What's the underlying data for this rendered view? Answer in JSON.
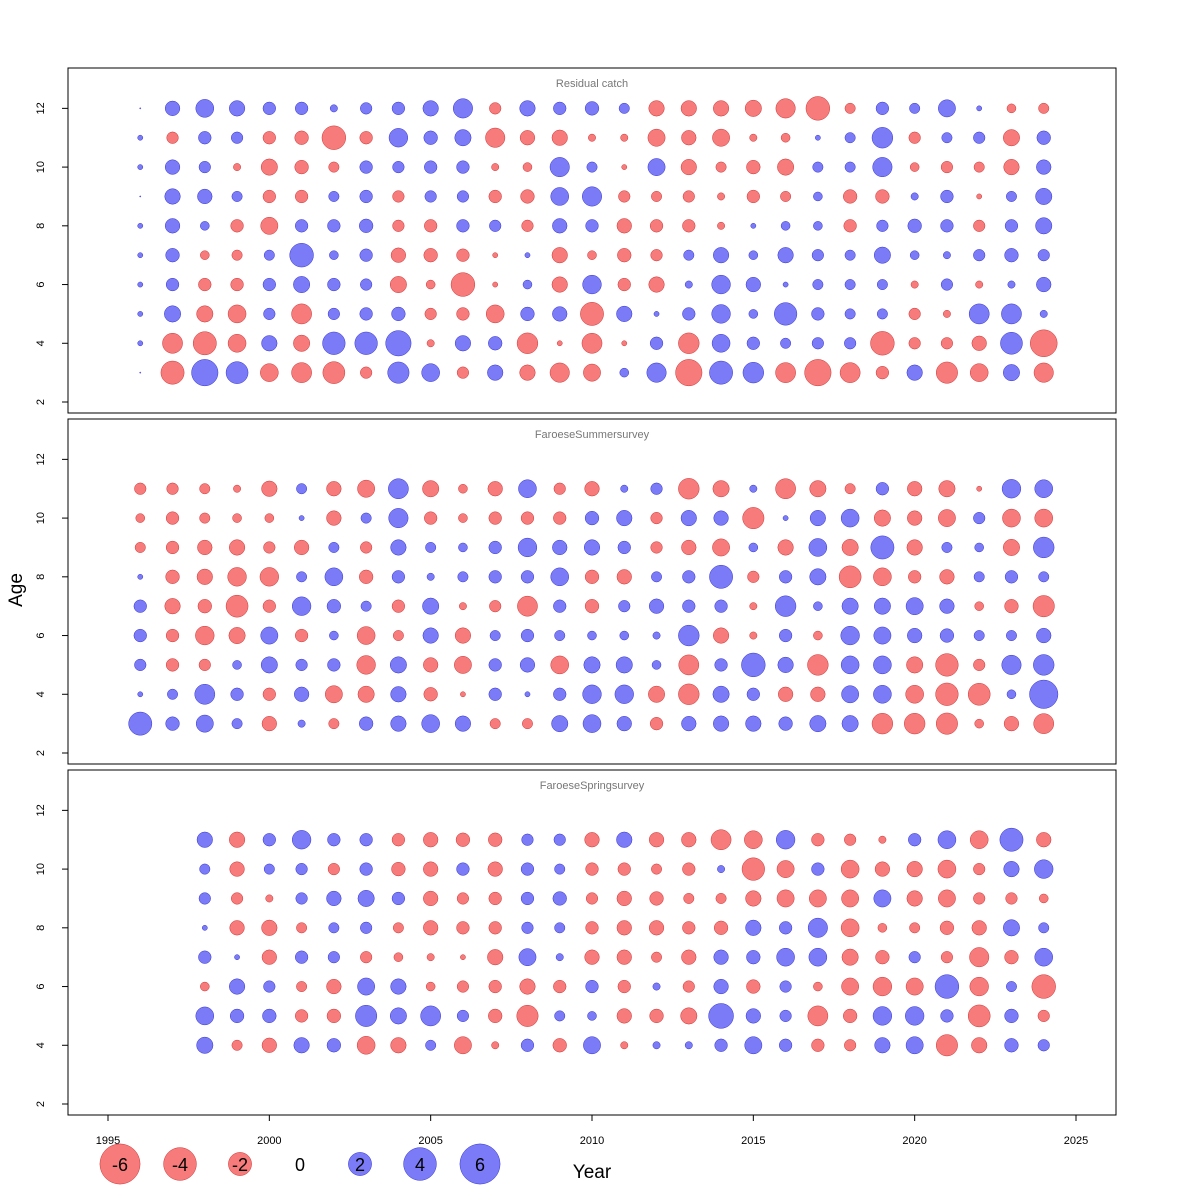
{
  "chart_data": {
    "type": "scatter",
    "subtype": "bubble-residuals",
    "xlabel": "Year",
    "ylabel": "Age",
    "xlim": [
      1995,
      2025
    ],
    "ylim": [
      2,
      13
    ],
    "x_ticks": [
      "1995",
      "2000",
      "2005",
      "2010",
      "2015",
      "2020",
      "2025"
    ],
    "y_ticks": [
      "2",
      "4",
      "6",
      "8",
      "10",
      "12"
    ],
    "colors": {
      "positive": "#7b7bf7",
      "negative": "#f77b7b",
      "outline_positive": "#3333cc",
      "outline_negative": "#cc3333"
    },
    "legend": {
      "position": "bottom-left",
      "values": [
        -6,
        -4,
        -2,
        0,
        2,
        4,
        6
      ],
      "labels": [
        "-6",
        "-4",
        "-2",
        "0",
        "2",
        "4",
        "6"
      ]
    },
    "panels": [
      {
        "title": "Residual catch",
        "first_year": 1996,
        "ages": [
          3,
          4,
          5,
          6,
          7,
          8,
          9,
          10,
          11,
          12
        ],
        "residuals": [
          [
            0.0,
            0.1,
            0.1,
            0.1,
            0.1,
            0.1,
            0.0,
            0.1,
            0.1,
            0.0
          ],
          [
            -2.0,
            -1.5,
            1.0,
            0.6,
            0.7,
            0.8,
            0.9,
            0.8,
            -0.5,
            0.8
          ],
          [
            2.6,
            -2.0,
            -1.0,
            -0.6,
            -0.3,
            0.3,
            0.8,
            0.5,
            0.6,
            1.2
          ],
          [
            1.8,
            -1.2,
            -1.2,
            -0.6,
            -0.4,
            -0.6,
            0.4,
            -0.2,
            0.5,
            0.9
          ],
          [
            -1.2,
            0.9,
            0.5,
            0.6,
            0.4,
            -1.1,
            -0.6,
            -1.0,
            -0.6,
            0.6
          ],
          [
            -1.5,
            -1.0,
            -1.5,
            1.0,
            2.1,
            0.6,
            -0.6,
            -0.7,
            -0.7,
            0.6
          ],
          [
            -1.8,
            1.9,
            0.5,
            0.6,
            0.3,
            0.6,
            0.4,
            -0.4,
            -2.1,
            0.2
          ],
          [
            -0.5,
            1.9,
            0.6,
            0.5,
            0.6,
            0.7,
            0.6,
            0.6,
            -0.6,
            0.5
          ],
          [
            1.7,
            2.4,
            0.7,
            -1.0,
            -0.8,
            -0.5,
            -0.5,
            0.5,
            1.3,
            0.6
          ],
          [
            1.2,
            -0.2,
            -0.5,
            -0.3,
            -0.7,
            -0.6,
            0.5,
            0.6,
            0.7,
            0.9
          ],
          [
            -0.5,
            0.9,
            -0.6,
            -2.1,
            -0.6,
            0.6,
            0.5,
            0.6,
            1.0,
            1.4
          ],
          [
            0.9,
            0.7,
            -1.2,
            -0.1,
            -0.1,
            0.5,
            -0.6,
            -0.2,
            -1.4,
            -0.5
          ],
          [
            -0.9,
            -1.6,
            0.7,
            0.3,
            0.1,
            -0.5,
            -0.7,
            -0.3,
            -0.8,
            0.9
          ],
          [
            -1.4,
            -0.1,
            0.8,
            -0.9,
            -0.9,
            0.8,
            1.2,
            1.4,
            -0.9,
            0.6
          ],
          [
            -1.1,
            -1.5,
            -2.0,
            1.3,
            -0.3,
            0.6,
            1.4,
            0.4,
            -0.2,
            0.7
          ],
          [
            0.3,
            -0.1,
            0.9,
            -0.6,
            -0.7,
            -0.8,
            -0.5,
            -0.1,
            -0.2,
            0.4
          ],
          [
            1.4,
            0.6,
            0.1,
            -0.9,
            -0.5,
            -0.6,
            -0.4,
            1.1,
            -1.1,
            -0.9
          ],
          [
            -2.6,
            -1.6,
            0.6,
            0.2,
            0.4,
            -0.6,
            -0.5,
            -0.9,
            -0.8,
            -0.9
          ],
          [
            2.0,
            1.2,
            1.3,
            1.3,
            0.9,
            -0.2,
            -0.2,
            -0.4,
            -1.1,
            -0.9
          ],
          [
            1.6,
            0.6,
            0.3,
            0.8,
            0.3,
            0.1,
            -0.6,
            -0.7,
            -0.2,
            -1.0
          ],
          [
            -1.5,
            0.4,
            1.9,
            0.1,
            0.9,
            0.3,
            -0.4,
            -1.0,
            -0.3,
            -1.4
          ],
          [
            -2.6,
            0.5,
            0.6,
            0.4,
            0.5,
            0.3,
            0.3,
            0.4,
            0.1,
            -2.1
          ],
          [
            -1.5,
            0.5,
            0.4,
            0.4,
            0.4,
            -0.6,
            -0.7,
            0.4,
            0.4,
            -0.4
          ],
          [
            -0.6,
            -2.1,
            0.4,
            0.4,
            1.0,
            0.5,
            -0.7,
            1.4,
            1.6,
            0.6
          ],
          [
            0.9,
            -0.5,
            -0.5,
            -0.2,
            0.3,
            0.7,
            0.2,
            -0.3,
            -0.5,
            0.4
          ],
          [
            -1.7,
            -0.5,
            -0.2,
            0.5,
            0.2,
            0.6,
            0.6,
            -0.5,
            0.4,
            1.1
          ],
          [
            -1.2,
            -0.8,
            1.5,
            -0.2,
            0.5,
            -0.5,
            -0.1,
            -0.4,
            0.5,
            0.1
          ],
          [
            1.0,
            1.8,
            1.5,
            0.2,
            0.7,
            0.6,
            0.4,
            -0.9,
            -1.0,
            -0.3
          ],
          [
            -1.4,
            -2.7,
            0.2,
            0.8,
            0.5,
            1.0,
            1.0,
            0.8,
            0.7,
            -0.4
          ]
        ]
      },
      {
        "title": "FaroeseSummersurvey",
        "first_year": 1996,
        "ages": [
          3,
          4,
          5,
          6,
          7,
          8,
          9,
          10,
          11
        ],
        "residuals": [
          [
            2.0,
            0.1,
            0.5,
            0.6,
            0.6,
            0.1,
            -0.4,
            -0.3,
            -0.5
          ],
          [
            0.7,
            0.4,
            -0.6,
            -0.6,
            -0.9,
            -0.7,
            -0.6,
            -0.6,
            -0.5
          ],
          [
            1.1,
            1.5,
            -0.5,
            -1.3,
            -0.7,
            -0.9,
            -0.8,
            -0.4,
            -0.4
          ],
          [
            0.4,
            0.6,
            0.3,
            -1.0,
            -1.8,
            -1.3,
            -0.9,
            -0.3,
            -0.2
          ],
          [
            -0.8,
            -0.6,
            1.0,
            1.1,
            -0.6,
            -1.3,
            -0.5,
            -0.3,
            -0.9
          ],
          [
            0.2,
            0.8,
            0.5,
            -0.6,
            1.3,
            0.4,
            -0.8,
            0.1,
            0.4
          ],
          [
            -0.4,
            -1.1,
            0.6,
            0.3,
            0.7,
            1.2,
            0.4,
            -0.8,
            -0.8
          ],
          [
            0.7,
            -1.0,
            -1.3,
            -1.2,
            0.4,
            -0.7,
            -0.5,
            0.4,
            -1.1
          ],
          [
            0.9,
            0.9,
            1.0,
            -0.4,
            -0.6,
            0.6,
            0.9,
            1.4,
            1.5
          ],
          [
            1.2,
            -0.7,
            -0.8,
            0.9,
            1.0,
            0.2,
            0.4,
            -0.6,
            -1.0
          ],
          [
            0.9,
            -0.1,
            -1.1,
            -0.9,
            -0.2,
            0.4,
            0.3,
            -0.3,
            -0.3
          ],
          [
            -0.4,
            0.6,
            0.6,
            0.4,
            -0.5,
            0.6,
            0.6,
            -0.6,
            -0.8
          ],
          [
            -0.4,
            0.1,
            0.8,
            0.6,
            -1.5,
            0.6,
            1.3,
            -0.6,
            1.2
          ],
          [
            1.0,
            0.6,
            -1.2,
            0.4,
            0.6,
            1.2,
            0.8,
            -0.6,
            -0.5
          ],
          [
            1.2,
            1.3,
            1.0,
            0.3,
            -0.7,
            -0.7,
            0.9,
            0.7,
            -0.8
          ],
          [
            0.8,
            1.3,
            1.0,
            0.3,
            0.5,
            -0.8,
            0.6,
            0.9,
            0.2
          ],
          [
            -0.6,
            -1.0,
            0.3,
            0.2,
            0.8,
            0.4,
            -0.5,
            -0.5,
            0.5
          ],
          [
            0.8,
            -1.6,
            -1.5,
            1.6,
            0.6,
            0.6,
            -0.8,
            0.9,
            -1.6
          ],
          [
            0.9,
            1.0,
            0.6,
            -0.9,
            0.6,
            2.0,
            -1.1,
            0.8,
            -1.0
          ],
          [
            0.9,
            0.6,
            2.1,
            -0.2,
            -0.2,
            -0.5,
            0.3,
            -1.7,
            0.2
          ],
          [
            0.7,
            -0.8,
            0.9,
            0.6,
            1.6,
            0.6,
            -0.9,
            0.1,
            -1.5
          ],
          [
            1.0,
            -0.8,
            -1.6,
            -0.3,
            0.3,
            1.0,
            1.2,
            0.9,
            -1.0
          ],
          [
            1.0,
            1.1,
            1.2,
            1.3,
            1.0,
            -1.8,
            -1.0,
            1.2,
            -0.4
          ],
          [
            -1.6,
            1.2,
            1.2,
            1.1,
            1.0,
            -1.2,
            2.0,
            -1.0,
            0.6
          ],
          [
            -1.6,
            -1.2,
            -1.0,
            0.8,
            1.1,
            -0.6,
            -0.9,
            -0.8,
            -0.8
          ],
          [
            -1.7,
            -1.9,
            -1.9,
            0.7,
            0.8,
            -0.8,
            0.4,
            -1.1,
            -1.0
          ],
          [
            -0.3,
            -1.8,
            -0.5,
            0.4,
            -0.3,
            0.4,
            0.3,
            0.5,
            -0.1
          ],
          [
            -0.8,
            0.3,
            1.4,
            0.4,
            -0.7,
            0.6,
            -1.0,
            -1.2,
            1.3
          ],
          [
            -1.5,
            3.0,
            1.6,
            0.8,
            -1.7,
            0.4,
            1.6,
            -1.2,
            1.2
          ]
        ]
      },
      {
        "title": "FaroeseSpringsurvey",
        "first_year": 1998,
        "ages": [
          4,
          5,
          6,
          7,
          8,
          9,
          10,
          11
        ],
        "residuals": [
          [
            1.0,
            1.2,
            -0.3,
            0.6,
            0.1,
            0.5,
            0.4,
            0.9
          ],
          [
            -0.4,
            0.7,
            0.9,
            0.1,
            -0.8,
            -0.5,
            -0.8,
            -0.9
          ],
          [
            -0.8,
            0.7,
            0.5,
            -0.8,
            -0.9,
            -0.2,
            0.4,
            0.6
          ],
          [
            0.9,
            -0.6,
            -0.4,
            0.6,
            -0.4,
            0.5,
            0.5,
            1.3
          ],
          [
            0.7,
            -0.7,
            -0.8,
            0.5,
            0.4,
            0.8,
            -0.5,
            0.6
          ],
          [
            -1.2,
            1.7,
            1.1,
            -0.5,
            0.5,
            1.0,
            0.6,
            0.6
          ],
          [
            -0.9,
            1.0,
            0.9,
            -0.3,
            -0.4,
            0.6,
            -0.7,
            -0.6
          ],
          [
            0.4,
            1.5,
            -0.3,
            -0.2,
            -0.8,
            -0.8,
            -0.8,
            -0.8
          ],
          [
            -1.1,
            0.5,
            -0.5,
            -0.1,
            -0.6,
            -0.5,
            0.6,
            -0.7
          ],
          [
            -0.2,
            -0.7,
            -0.6,
            -0.9,
            -0.6,
            -0.6,
            -0.8,
            -0.7
          ],
          [
            0.6,
            -1.7,
            -0.9,
            1.1,
            0.5,
            0.6,
            0.6,
            0.5
          ],
          [
            -0.7,
            0.4,
            -0.6,
            0.2,
            0.4,
            0.7,
            0.4,
            0.5
          ],
          [
            1.1,
            0.3,
            0.6,
            -0.8,
            -0.6,
            -0.5,
            -0.6,
            -0.8
          ],
          [
            -0.2,
            -0.8,
            -0.6,
            -0.8,
            -0.8,
            -0.8,
            -0.6,
            0.9
          ],
          [
            0.2,
            -0.7,
            0.2,
            -0.4,
            -0.8,
            -0.7,
            -0.4,
            -0.8
          ],
          [
            0.2,
            -1.0,
            -0.5,
            -0.8,
            -0.6,
            -0.4,
            -0.6,
            -0.8
          ],
          [
            0.6,
            2.3,
            0.8,
            0.8,
            -0.7,
            -0.4,
            0.2,
            -1.5
          ],
          [
            1.1,
            0.8,
            -0.7,
            0.7,
            0.9,
            -0.9,
            -1.9,
            -1.2
          ],
          [
            0.6,
            0.5,
            0.5,
            1.2,
            0.6,
            -1.1,
            -1.1,
            1.3
          ],
          [
            -0.6,
            -1.5,
            -0.3,
            1.2,
            1.4,
            -1.1,
            0.6,
            -0.6
          ],
          [
            -0.5,
            -0.7,
            -1.1,
            -1.0,
            -1.2,
            -1.1,
            -1.2,
            -0.5
          ],
          [
            0.9,
            1.3,
            -1.3,
            -0.7,
            -0.3,
            1.1,
            -0.8,
            -0.2
          ],
          [
            1.1,
            1.3,
            -1.1,
            0.5,
            -0.4,
            -0.9,
            -0.9,
            0.6
          ],
          [
            -1.7,
            0.6,
            2.1,
            -0.5,
            -0.7,
            -1.1,
            -1.2,
            1.2
          ],
          [
            -0.9,
            -1.8,
            -1.3,
            -1.4,
            -0.8,
            -0.5,
            -0.5,
            -1.2
          ],
          [
            0.7,
            0.7,
            0.4,
            -0.7,
            1.0,
            -0.5,
            0.9,
            2.0
          ],
          [
            0.5,
            -0.5,
            -2.1,
            1.2,
            0.4,
            -0.3,
            1.3,
            -0.8
          ]
        ]
      }
    ]
  }
}
